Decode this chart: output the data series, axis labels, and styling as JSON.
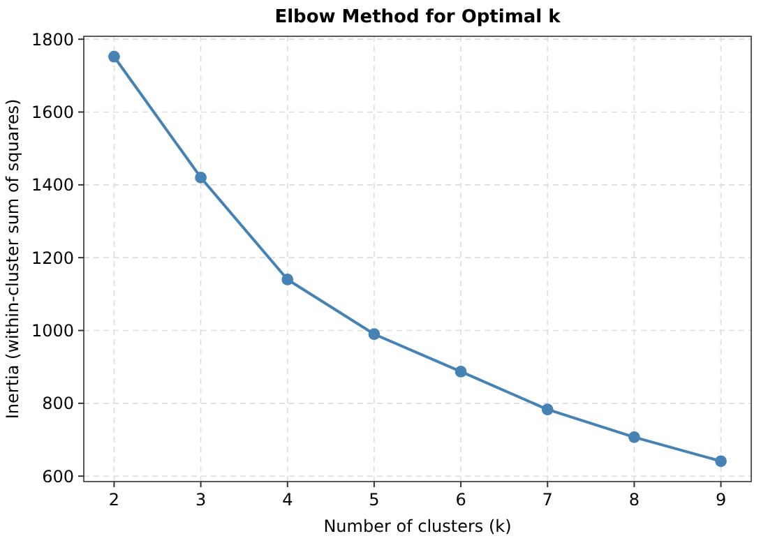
{
  "chart_data": {
    "type": "line",
    "title": "Elbow Method for Optimal k",
    "xlabel": "Number of clusters (k)",
    "ylabel": "Inertia (within-cluster sum of squares)",
    "x": [
      2,
      3,
      4,
      5,
      6,
      7,
      8,
      9
    ],
    "series": [
      {
        "color": "#4682b4",
        "values": [
          1752,
          1420,
          1140,
          990,
          887,
          783,
          707,
          641
        ]
      }
    ],
    "xlim": [
      1.65,
      9.35
    ],
    "xticks": [
      2,
      3,
      4,
      5,
      6,
      7,
      8,
      9
    ],
    "ylim": [
      585,
      1808
    ],
    "yticks": [
      600,
      800,
      1000,
      1200,
      1400,
      1600,
      1800
    ],
    "grid": true,
    "marker": "circle",
    "line_style": "solid"
  }
}
